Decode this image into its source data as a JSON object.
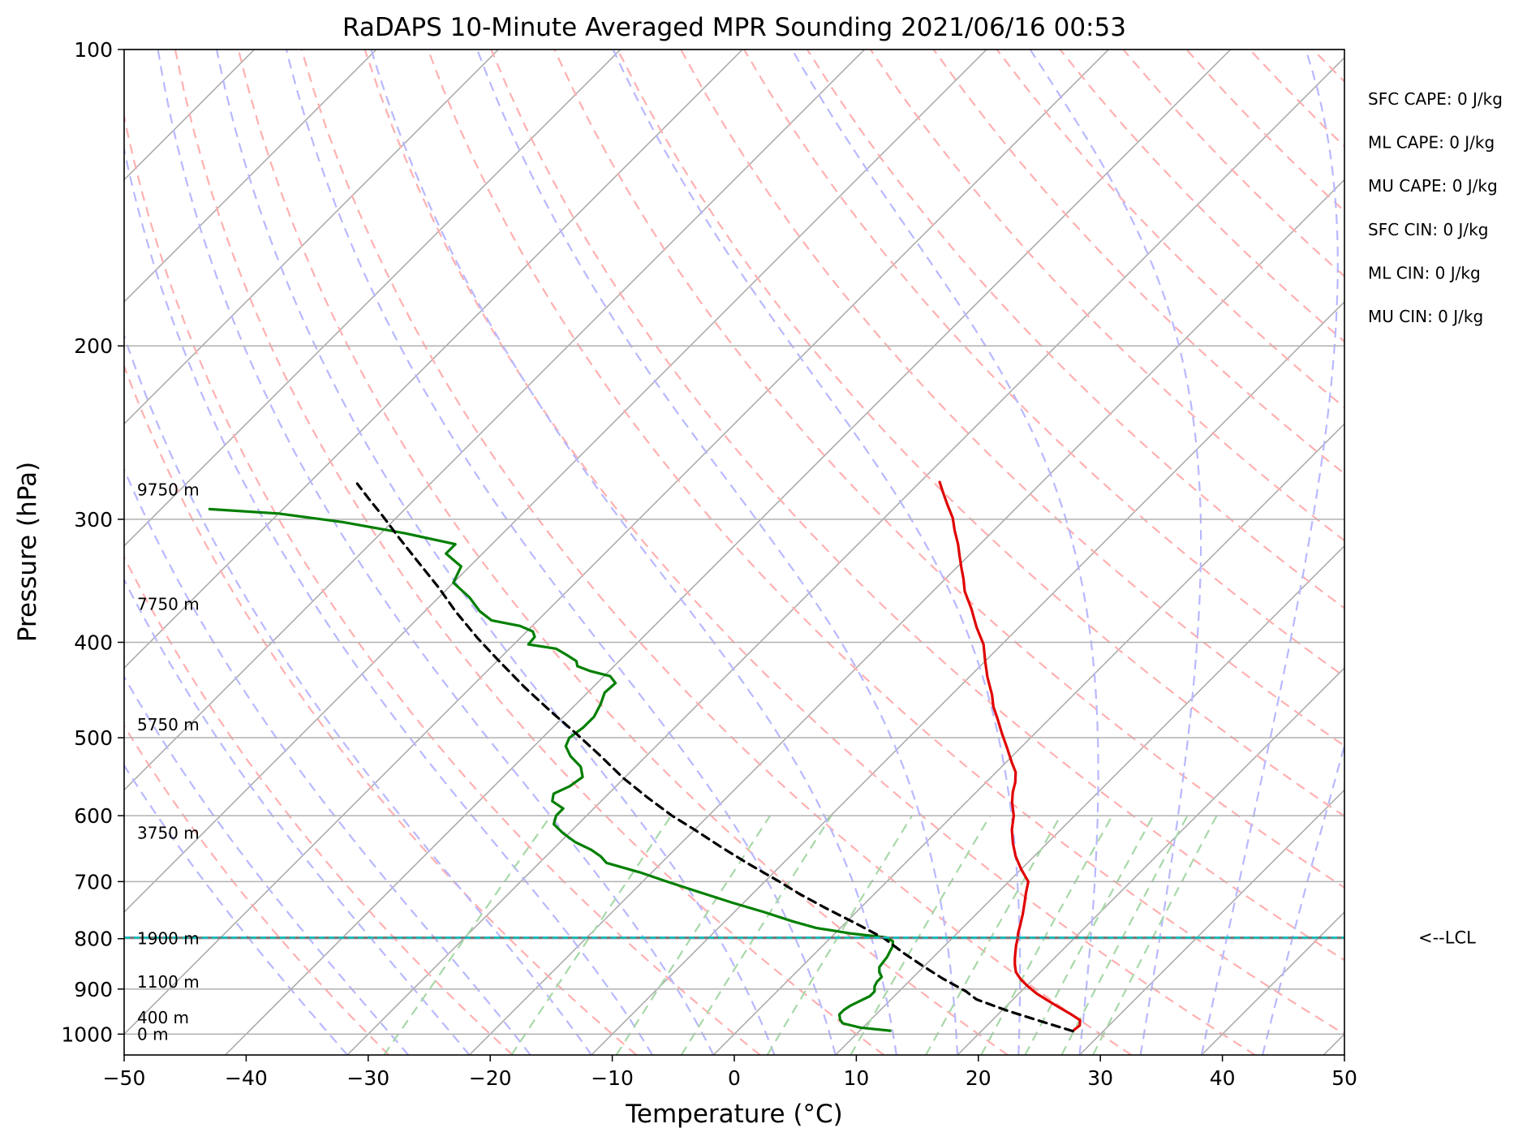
{
  "chart_data": {
    "type": "line",
    "title": "RaDAPS 10-Minute Averaged MPR Sounding 2021/06/16 00:53",
    "xlabel": "Temperature (°C)",
    "ylabel": "Pressure (hPa)",
    "xlim": [
      -50,
      50
    ],
    "ylim": [
      1050,
      100
    ],
    "y_scale": "log",
    "skew_t": true,
    "grid": true,
    "x_ticks": [
      -50,
      -40,
      -30,
      -20,
      -10,
      0,
      10,
      20,
      30,
      40,
      50
    ],
    "x_tick_labels": [
      "−50",
      "−40",
      "−30",
      "−20",
      "−10",
      "0",
      "10",
      "20",
      "30",
      "40",
      "50"
    ],
    "y_ticks": [
      100,
      200,
      300,
      400,
      500,
      600,
      700,
      800,
      900,
      1000
    ],
    "y_tick_labels": [
      "100",
      "200",
      "300",
      "400",
      "500",
      "600",
      "700",
      "800",
      "900",
      "1000"
    ],
    "height_labels": [
      {
        "text": "9750 m",
        "p": 280
      },
      {
        "text": "7750 m",
        "p": 366
      },
      {
        "text": "5750 m",
        "p": 485
      },
      {
        "text": "3750 m",
        "p": 625
      },
      {
        "text": "1900 m",
        "p": 800
      },
      {
        "text": "1100 m",
        "p": 885
      },
      {
        "text": "400 m",
        "p": 962
      },
      {
        "text": "0 m",
        "p": 1000
      }
    ],
    "stats": [
      "SFC CAPE: 0 J/kg",
      "ML CAPE: 0 J/kg",
      "MU CAPE: 0 J/kg",
      "SFC CIN: 0 J/kg",
      "ML CIN: 0 J/kg",
      "MU CIN: 0 J/kg"
    ],
    "lcl_label": "<--LCL",
    "lcl_pressure": 798,
    "series": [
      {
        "color": "#e00000",
        "points": [
          [
            27.5,
            990
          ],
          [
            27.6,
            980
          ],
          [
            27.2,
            968
          ],
          [
            26.0,
            955
          ],
          [
            24.5,
            940
          ],
          [
            23.0,
            925
          ],
          [
            21.5,
            910
          ],
          [
            20.2,
            895
          ],
          [
            19.0,
            880
          ],
          [
            18.0,
            865
          ],
          [
            17.3,
            850
          ],
          [
            16.8,
            838
          ],
          [
            16.3,
            825
          ],
          [
            15.8,
            812
          ],
          [
            15.4,
            800
          ],
          [
            15.0,
            790
          ],
          [
            14.5,
            775
          ],
          [
            13.8,
            755
          ],
          [
            13.0,
            735
          ],
          [
            12.3,
            718
          ],
          [
            11.6,
            700
          ],
          [
            10.0,
            680
          ],
          [
            8.5,
            660
          ],
          [
            7.2,
            640
          ],
          [
            6.0,
            620
          ],
          [
            5.0,
            600
          ],
          [
            3.8,
            582
          ],
          [
            3.0,
            568
          ],
          [
            2.4,
            555
          ],
          [
            1.6,
            542
          ],
          [
            0.5,
            530
          ],
          [
            -1.1,
            512
          ],
          [
            -2.7,
            495
          ],
          [
            -4.3,
            478
          ],
          [
            -5.6,
            465
          ],
          [
            -6.7,
            452
          ],
          [
            -8.5,
            434
          ],
          [
            -10.0,
            418
          ],
          [
            -11.5,
            402
          ],
          [
            -13.5,
            386
          ],
          [
            -15.4,
            370
          ],
          [
            -17.4,
            355
          ],
          [
            -18.5,
            345
          ],
          [
            -19.6,
            336
          ],
          [
            -20.7,
            327
          ],
          [
            -21.8,
            318
          ],
          [
            -23.2,
            308
          ],
          [
            -24.4,
            299
          ],
          [
            -25.9,
            290
          ],
          [
            -27.4,
            281
          ],
          [
            -28.4,
            275
          ]
        ]
      },
      {
        "color": "#007f00",
        "points": [
          [
            12.5,
            992
          ],
          [
            9.8,
            985
          ],
          [
            8.0,
            975
          ],
          [
            7.5,
            967
          ],
          [
            7.0,
            955
          ],
          [
            7.0,
            945
          ],
          [
            7.2,
            935
          ],
          [
            7.6,
            925
          ],
          [
            8.0,
            915
          ],
          [
            8.0,
            905
          ],
          [
            7.6,
            895
          ],
          [
            7.4,
            885
          ],
          [
            7.4,
            875
          ],
          [
            6.8,
            865
          ],
          [
            6.4,
            855
          ],
          [
            6.3,
            845
          ],
          [
            6.2,
            835
          ],
          [
            6.0,
            825
          ],
          [
            5.8,
            815
          ],
          [
            5.4,
            805
          ],
          [
            4.6,
            798
          ],
          [
            1.2,
            790
          ],
          [
            -2.0,
            780
          ],
          [
            -4.5,
            768
          ],
          [
            -7.5,
            752
          ],
          [
            -11.0,
            735
          ],
          [
            -15.0,
            715
          ],
          [
            -18.0,
            700
          ],
          [
            -21.0,
            685
          ],
          [
            -24.5,
            670
          ],
          [
            -25.5,
            660
          ],
          [
            -26.8,
            650
          ],
          [
            -28.8,
            638
          ],
          [
            -30.5,
            625
          ],
          [
            -32.0,
            612
          ],
          [
            -32.5,
            600
          ],
          [
            -32.5,
            590
          ],
          [
            -34.0,
            580
          ],
          [
            -34.5,
            570
          ],
          [
            -33.8,
            560
          ],
          [
            -33.5,
            548
          ],
          [
            -34.5,
            535
          ],
          [
            -36.2,
            522
          ],
          [
            -37.4,
            510
          ],
          [
            -37.8,
            500
          ],
          [
            -37.5,
            488
          ],
          [
            -37.5,
            476
          ],
          [
            -38.0,
            462
          ],
          [
            -38.6,
            450
          ],
          [
            -38.5,
            440
          ],
          [
            -39.5,
            433
          ],
          [
            -41.5,
            428
          ],
          [
            -43.0,
            423
          ],
          [
            -43.5,
            418
          ],
          [
            -44.8,
            412
          ],
          [
            -46.2,
            406
          ],
          [
            -48.8,
            402
          ],
          [
            -48.9,
            395
          ],
          [
            -49.5,
            390
          ],
          [
            -51.0,
            385
          ],
          [
            -53.8,
            380
          ],
          [
            -55.5,
            372
          ],
          [
            -57.5,
            360
          ],
          [
            -60.0,
            348
          ],
          [
            -60.7,
            335
          ],
          [
            -63.0,
            325
          ],
          [
            -63.0,
            318
          ],
          [
            -68.0,
            310
          ],
          [
            -74.0,
            302
          ],
          [
            -80.0,
            296
          ],
          [
            -86.0,
            293
          ]
        ]
      },
      {
        "color": "#000000",
        "dashed": true,
        "points": [
          [
            27.5,
            993
          ],
          [
            24.0,
            970
          ],
          [
            20.5,
            947
          ],
          [
            17.0,
            922
          ],
          [
            15.5,
            905
          ],
          [
            12.5,
            878
          ],
          [
            9.8,
            852
          ],
          [
            7.2,
            827
          ],
          [
            4.5,
            800
          ],
          [
            1.3,
            775
          ],
          [
            -2.8,
            745
          ],
          [
            -6.2,
            720
          ],
          [
            -8.8,
            700
          ],
          [
            -13.0,
            670
          ],
          [
            -16.5,
            645
          ],
          [
            -20.0,
            620
          ],
          [
            -23.0,
            600
          ],
          [
            -26.5,
            575
          ],
          [
            -30.0,
            550
          ],
          [
            -34.0,
            520
          ],
          [
            -37.6,
            495
          ],
          [
            -41.5,
            470
          ],
          [
            -45.5,
            445
          ],
          [
            -49.5,
            420
          ],
          [
            -53.5,
            396
          ],
          [
            -57.5,
            372
          ],
          [
            -60.8,
            352
          ],
          [
            -64.3,
            333
          ],
          [
            -68.0,
            314
          ],
          [
            -71.2,
            298
          ],
          [
            -73.8,
            286
          ],
          [
            -76.0,
            276
          ]
        ]
      }
    ],
    "lcl_color": "#00bfbf",
    "dry_adiabat_color": "#ffb0b0",
    "moist_adiabat_color": "#b8b8ff",
    "mixing_ratio_color": "#a8d8a8",
    "skew_line_color": "#a8a8a8",
    "grid_color": "#b0b0b0"
  }
}
